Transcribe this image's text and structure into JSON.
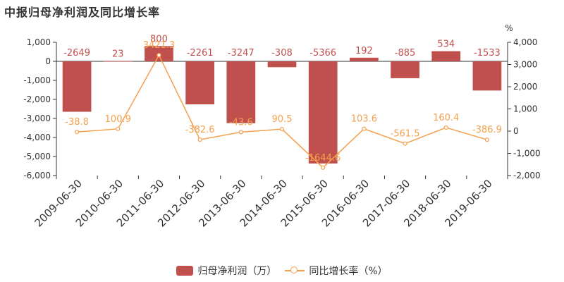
{
  "chart_data": {
    "type": "bar+line",
    "title": "中报归母净利润及同比增长率",
    "right_axis_unit": "%",
    "categories": [
      "2009-06-30",
      "2010-06-30",
      "2011-06-30",
      "2012-06-30",
      "2013-06-30",
      "2014-06-30",
      "2015-06-30",
      "2016-06-30",
      "2017-06-30",
      "2018-06-30",
      "2019-06-30"
    ],
    "series": [
      {
        "name": "归母净利润（万）",
        "type": "bar",
        "axis": "left",
        "color": "#c0504d",
        "values": [
          -2649,
          23,
          800,
          -2261,
          -3247,
          -308,
          -5366,
          192,
          -885,
          534,
          -1533
        ],
        "labels": [
          "-2649",
          "23",
          "800",
          "-2261",
          "-3247",
          "-308",
          "-5366",
          "192",
          "-885",
          "534",
          "-1533"
        ]
      },
      {
        "name": "同比增长率（%）",
        "type": "line",
        "axis": "right",
        "color": "#f4a04c",
        "values": [
          -38.8,
          100.9,
          3421.3,
          -382.6,
          -43.6,
          90.5,
          -1644.6,
          103.6,
          -561.5,
          160.4,
          -386.9
        ],
        "labels": [
          "-38.8",
          "100.9",
          "3421.3",
          "-382.6",
          "-43.6",
          "90.5",
          "-1644.6",
          "103.6",
          "-561.5",
          "160.4",
          "-386.9"
        ]
      }
    ],
    "left_axis": {
      "ylim": [
        -6000,
        1000
      ],
      "ticks": [
        1000,
        0,
        -1000,
        -2000,
        -3000,
        -4000,
        -5000,
        -6000
      ],
      "tick_labels": [
        "1,000",
        "0",
        "-1,000",
        "-2,000",
        "-3,000",
        "-4,000",
        "-5,000",
        "-6,000"
      ]
    },
    "right_axis": {
      "ylim": [
        -2000,
        4000
      ],
      "ticks": [
        4000,
        3000,
        2000,
        1000,
        0,
        -1000,
        -2000
      ],
      "tick_labels": [
        "4,000",
        "3,000",
        "2,000",
        "1,000",
        "0",
        "-1,000",
        "-2,000"
      ]
    },
    "grid": false,
    "legend_position": "bottom-center",
    "bar_label_color": "#c0504d",
    "line_label_color": "#f4a04c"
  }
}
